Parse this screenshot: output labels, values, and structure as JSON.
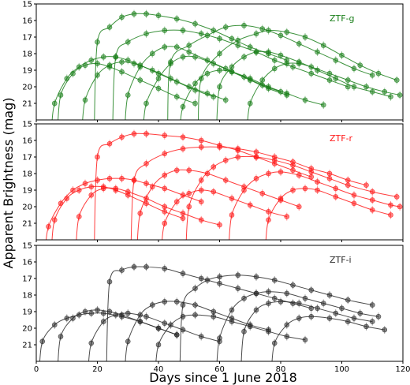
{
  "chart_data": {
    "type": "scatter",
    "title": "",
    "xlabel": "Days since 1 June 2018",
    "ylabel": "Apparent Brightness (mag)",
    "xlim": [
      0,
      120
    ],
    "x_ticks": [
      0,
      20,
      40,
      60,
      80,
      100,
      120
    ],
    "y_reversed": true,
    "grid": false,
    "panels": [
      {
        "band": "ZTF-g",
        "color": "#1a7f1a",
        "ylim": [
          15,
          22
        ],
        "y_ticks": [
          15,
          16,
          17,
          18,
          19,
          20,
          21
        ],
        "series": [
          {
            "x": [
              20,
              24,
              28,
              32,
              36,
              40,
              46,
              52,
              58,
              64,
              70,
              76,
              82
            ],
            "y": [
              17.3,
              16.4,
              15.8,
              15.6,
              15.6,
              15.7,
              15.9,
              16.2,
              16.6,
              17.1,
              17.6,
              18.0,
              18.4
            ]
          },
          {
            "x": [
              26,
              30,
              36,
              42,
              48,
              54,
              60,
              66,
              72,
              78,
              84,
              90,
              96,
              102
            ],
            "y": [
              18.2,
              17.3,
              16.8,
              16.6,
              16.6,
              16.8,
              17.1,
              17.5,
              17.9,
              18.4,
              18.8,
              19.2,
              19.6,
              20.0
            ]
          },
          {
            "x": [
              44,
              50,
              56,
              62,
              68,
              74,
              80,
              86,
              92,
              98,
              104,
              110
            ],
            "y": [
              18.5,
              17.5,
              16.9,
              16.4,
              16.3,
              16.5,
              16.9,
              17.4,
              17.9,
              18.4,
              18.9,
              19.3
            ]
          },
          {
            "x": [
              54,
              60,
              66,
              72,
              76,
              82,
              88,
              94,
              100,
              106,
              112,
              118
            ],
            "y": [
              19.5,
              18.0,
              17.2,
              16.8,
              16.6,
              16.7,
              17.0,
              17.5,
              18.1,
              18.7,
              19.2,
              19.6
            ]
          },
          {
            "x": [
              6,
              10,
              14,
              18,
              22,
              26,
              30,
              34,
              40,
              46,
              52,
              58
            ],
            "y": [
              21.0,
              19.5,
              18.8,
              18.4,
              18.2,
              18.2,
              18.4,
              18.7,
              19.2,
              19.7,
              20.2,
              20.6
            ]
          },
          {
            "x": [
              8,
              12,
              16,
              20,
              24,
              28,
              34,
              40,
              46,
              52
            ],
            "y": [
              20.5,
              19.2,
              18.7,
              18.6,
              18.8,
              19.1,
              19.6,
              20.1,
              20.6,
              21.0
            ]
          },
          {
            "x": [
              30,
              34,
              38,
              42,
              46,
              50,
              56,
              62,
              68,
              74,
              80
            ],
            "y": [
              20.5,
              18.8,
              18.0,
              17.6,
              17.6,
              17.9,
              18.4,
              18.9,
              19.4,
              19.9,
              20.3
            ]
          },
          {
            "x": [
              60,
              64,
              68,
              72,
              76,
              80,
              86,
              92,
              98,
              104,
              110,
              116
            ],
            "y": [
              20.0,
              18.8,
              18.2,
              17.9,
              17.9,
              18.1,
              18.5,
              19.0,
              19.5,
              20.0,
              20.3,
              20.6
            ]
          },
          {
            "x": [
              36,
              40,
              44,
              48,
              52,
              58,
              64,
              70,
              76,
              82
            ],
            "y": [
              21.0,
              19.5,
              18.6,
              18.2,
              18.2,
              18.6,
              19.1,
              19.6,
              20.1,
              20.5
            ]
          },
          {
            "x": [
              70,
              74,
              78,
              82,
              86,
              90,
              96,
              102,
              108,
              114,
              119
            ],
            "y": [
              21.0,
              19.6,
              18.9,
              18.6,
              18.6,
              18.8,
              19.2,
              19.6,
              20.0,
              20.3,
              20.5
            ]
          },
          {
            "x": [
              16,
              20,
              24,
              28,
              32,
              38,
              44,
              50,
              56,
              62
            ],
            "y": [
              20.8,
              19.3,
              18.7,
              18.5,
              18.6,
              19.0,
              19.5,
              20.0,
              20.4,
              20.8
            ]
          },
          {
            "x": [
              48,
              52,
              56,
              60,
              64,
              70,
              76,
              82,
              88,
              94
            ],
            "y": [
              21.2,
              19.8,
              19.2,
              19.0,
              19.1,
              19.5,
              20.0,
              20.4,
              20.8,
              21.1
            ]
          }
        ]
      },
      {
        "band": "ZTF-r",
        "color": "#ff1a1a",
        "ylim": [
          15,
          22
        ],
        "y_ticks": [
          15,
          16,
          17,
          18,
          19,
          20,
          21
        ],
        "series": [
          {
            "x": [
              20,
              24,
              28,
              32,
              36,
              42,
              48,
              54,
              60,
              66,
              72,
              78,
              84,
              90
            ],
            "y": [
              17.0,
              16.2,
              15.8,
              15.6,
              15.6,
              15.7,
              15.8,
              16.0,
              16.3,
              16.6,
              17.0,
              17.4,
              17.8,
              18.2
            ]
          },
          {
            "x": [
              32,
              36,
              42,
              48,
              54,
              60,
              66,
              72,
              78,
              84,
              90,
              96,
              102,
              108
            ],
            "y": [
              18.4,
              17.4,
              16.8,
              16.5,
              16.4,
              16.4,
              16.5,
              16.7,
              17.0,
              17.3,
              17.7,
              18.0,
              18.4,
              18.7
            ]
          },
          {
            "x": [
              4,
              8,
              12,
              16,
              20,
              24,
              28,
              32,
              36,
              42,
              48,
              54
            ],
            "y": [
              21.2,
              19.8,
              19.0,
              18.6,
              18.4,
              18.3,
              18.3,
              18.4,
              18.6,
              18.9,
              19.3,
              19.7
            ]
          },
          {
            "x": [
              6,
              10,
              14,
              18,
              22,
              26,
              30,
              36,
              42,
              48
            ],
            "y": [
              20.8,
              19.5,
              19.0,
              18.8,
              18.8,
              19.0,
              19.3,
              19.8,
              20.3,
              20.7
            ]
          },
          {
            "x": [
              50,
              54,
              58,
              62,
              66,
              72,
              78,
              84,
              90,
              96,
              102,
              110,
              118
            ],
            "y": [
              20.0,
              18.4,
              17.6,
              17.2,
              17.0,
              17.0,
              17.2,
              17.5,
              17.9,
              18.3,
              18.7,
              19.1,
              19.4
            ]
          },
          {
            "x": [
              34,
              38,
              42,
              46,
              50,
              56,
              62,
              68,
              74,
              80,
              86
            ],
            "y": [
              20.4,
              18.8,
              18.1,
              17.8,
              17.8,
              18.0,
              18.4,
              18.8,
              19.2,
              19.6,
              20.0
            ]
          },
          {
            "x": [
              64,
              68,
              72,
              76,
              80,
              86,
              92,
              98,
              104,
              110,
              116,
              119
            ],
            "y": [
              20.5,
              19.0,
              18.3,
              18.0,
              17.9,
              18.1,
              18.5,
              18.9,
              19.3,
              19.6,
              19.9,
              20.0
            ]
          },
          {
            "x": [
              14,
              18,
              22,
              26,
              30,
              36,
              42,
              48,
              54,
              60
            ],
            "y": [
              20.6,
              19.3,
              18.9,
              18.9,
              19.1,
              19.5,
              20.0,
              20.4,
              20.8,
              21.1
            ]
          },
          {
            "x": [
              76,
              80,
              84,
              88,
              92,
              98,
              104,
              110,
              116
            ],
            "y": [
              20.8,
              19.5,
              19.0,
              18.9,
              19.0,
              19.4,
              19.8,
              20.2,
              20.5
            ]
          },
          {
            "x": [
              42,
              46,
              50,
              54,
              58,
              64,
              70,
              76,
              82
            ],
            "y": [
              21.0,
              19.7,
              19.2,
              19.0,
              19.1,
              19.5,
              19.9,
              20.3,
              20.6
            ]
          }
        ]
      },
      {
        "band": "ZTF-i",
        "color": "#2a2a2a",
        "ylim": [
          15,
          22
        ],
        "y_ticks": [
          15,
          16,
          17,
          18,
          19,
          20,
          21
        ],
        "series": [
          {
            "x": [
              24,
              28,
              32,
              36,
              42,
              48,
              54,
              60,
              66,
              72,
              78,
              84,
              90
            ],
            "y": [
              17.2,
              16.5,
              16.3,
              16.3,
              16.4,
              16.7,
              17.0,
              17.3,
              17.6,
              17.9,
              18.2,
              18.5,
              18.8
            ]
          },
          {
            "x": [
              48,
              52,
              56,
              60,
              66,
              72,
              78,
              84,
              90,
              96,
              102,
              110
            ],
            "y": [
              18.6,
              17.6,
              17.1,
              16.9,
              16.8,
              16.9,
              17.1,
              17.4,
              17.7,
              18.0,
              18.3,
              18.6
            ]
          },
          {
            "x": [
              2,
              6,
              10,
              14,
              18,
              22,
              28,
              34,
              40,
              46
            ],
            "y": [
              20.8,
              19.8,
              19.4,
              19.2,
              19.1,
              19.1,
              19.3,
              19.6,
              20.0,
              20.4
            ]
          },
          {
            "x": [
              8,
              12,
              16,
              20,
              24,
              28,
              34,
              40,
              46
            ],
            "y": [
              20.5,
              19.4,
              19.0,
              18.9,
              19.0,
              19.2,
              19.6,
              20.0,
              20.4
            ]
          },
          {
            "x": [
              30,
              34,
              38,
              42,
              46,
              52,
              58,
              64,
              70,
              76
            ],
            "y": [
              20.8,
              19.2,
              18.6,
              18.4,
              18.4,
              18.6,
              19.0,
              19.4,
              19.8,
              20.1
            ]
          },
          {
            "x": [
              60,
              64,
              68,
              72,
              76,
              82,
              88,
              94,
              100,
              106,
              112
            ],
            "y": [
              20.6,
              18.9,
              18.2,
              17.9,
              17.8,
              17.9,
              18.2,
              18.5,
              18.8,
              19.1,
              19.3
            ]
          },
          {
            "x": [
              68,
              72,
              76,
              80,
              86,
              92,
              98,
              104,
              110
            ],
            "y": [
              20.2,
              18.9,
              18.5,
              18.4,
              18.5,
              18.8,
              19.1,
              19.4,
              19.6
            ]
          },
          {
            "x": [
              18,
              22,
              26,
              30,
              36,
              42,
              48,
              54,
              60
            ],
            "y": [
              20.9,
              19.6,
              19.2,
              19.1,
              19.3,
              19.7,
              20.1,
              20.5,
              20.8
            ]
          },
          {
            "x": [
              40,
              44,
              48,
              52,
              58,
              64,
              70,
              76,
              82,
              88
            ],
            "y": [
              21.0,
              19.8,
              19.3,
              19.2,
              19.3,
              19.6,
              19.9,
              20.2,
              20.5,
              20.7
            ]
          },
          {
            "x": [
              78,
              82,
              86,
              90,
              96,
              102,
              108,
              114
            ],
            "y": [
              20.9,
              19.8,
              19.4,
              19.3,
              19.4,
              19.6,
              19.9,
              20.1
            ]
          }
        ]
      }
    ]
  }
}
